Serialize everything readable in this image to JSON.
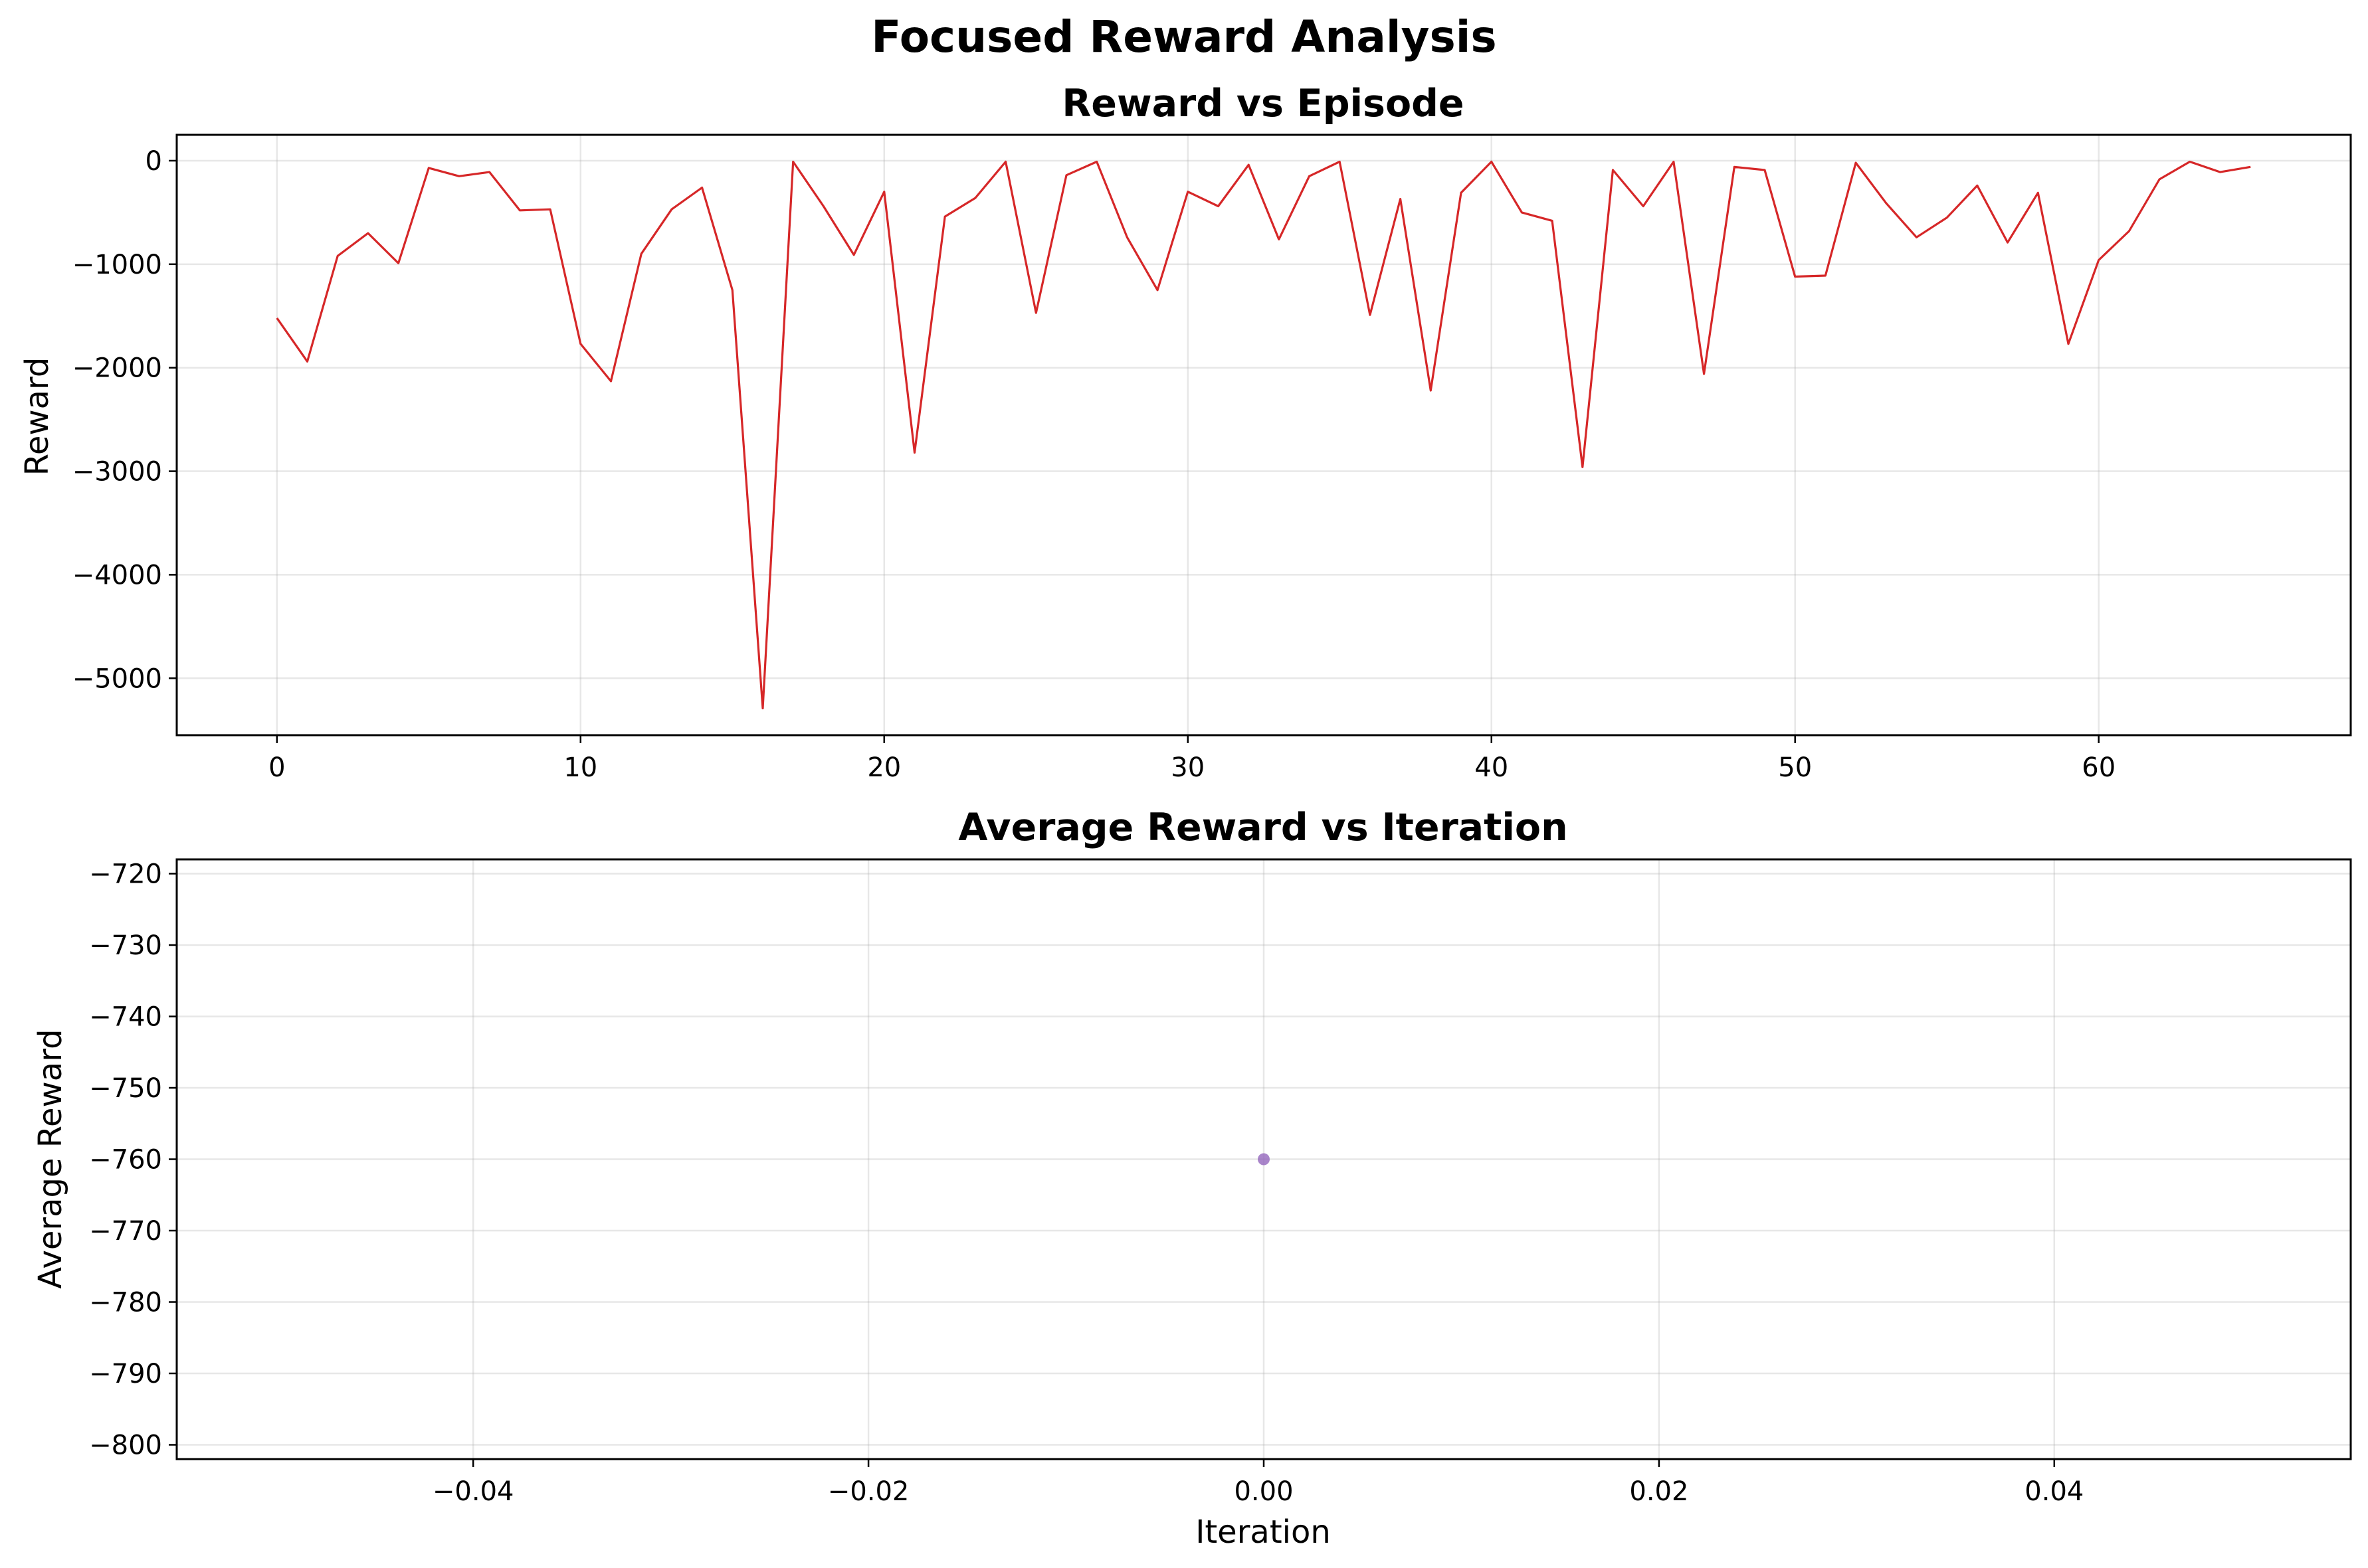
{
  "figure": {
    "title": "Focused Reward Analysis"
  },
  "chart_data": [
    {
      "type": "line",
      "title": "Reward vs Episode",
      "xlabel": "",
      "ylabel": "Reward",
      "xlim": [
        -3.3,
        68.3
      ],
      "ylim": [
        -5550,
        250
      ],
      "xticks": [
        0,
        10,
        20,
        30,
        40,
        50,
        60
      ],
      "yticks": [
        0,
        -1000,
        -2000,
        -3000,
        -4000,
        -5000
      ],
      "xtick_labels": [
        "0",
        "10",
        "20",
        "30",
        "40",
        "50",
        "60"
      ],
      "ytick_labels": [
        "0",
        "−1000",
        "−2000",
        "−3000",
        "−4000",
        "−5000"
      ],
      "grid": true,
      "color": "#d62728",
      "series": [
        {
          "x": [
            0,
            1,
            2,
            3,
            4,
            5,
            6,
            7,
            8,
            9,
            10,
            11,
            12,
            13,
            14,
            15,
            16,
            17,
            18,
            19,
            20,
            21,
            22,
            23,
            24,
            25,
            26,
            27,
            28,
            29,
            30,
            31,
            32,
            33,
            34,
            35,
            36,
            37,
            38,
            39,
            40,
            41,
            42,
            43,
            44,
            45,
            46,
            47,
            48,
            49,
            50,
            51,
            52,
            53,
            54,
            55,
            56,
            57,
            58,
            59,
            60,
            61,
            62,
            63,
            64,
            65
          ],
          "values": [
            -1520,
            -1940,
            -920,
            -700,
            -990,
            -70,
            -150,
            -110,
            -480,
            -470,
            -1770,
            -2130,
            -900,
            -470,
            -260,
            -1250,
            -5290,
            -10,
            -440,
            -910,
            -300,
            -2820,
            -540,
            -360,
            -10,
            -1470,
            -140,
            -10,
            -740,
            -1250,
            -300,
            -440,
            -40,
            -760,
            -150,
            -10,
            -1490,
            -370,
            -2220,
            -310,
            -10,
            -500,
            -580,
            -2960,
            -90,
            -440,
            -10,
            -2060,
            -60,
            -90,
            -1120,
            -1110,
            -20,
            -410,
            -740,
            -550,
            -240,
            -790,
            -310,
            -1770,
            -960,
            -680,
            -180,
            -10,
            -110,
            -60
          ]
        }
      ]
    },
    {
      "type": "scatter",
      "title": "Average Reward vs Iteration",
      "xlabel": "Iteration",
      "ylabel": "Average Reward",
      "xlim": [
        -0.055,
        0.055
      ],
      "ylim": [
        -802,
        -718
      ],
      "xticks": [
        -0.04,
        -0.02,
        0,
        0.02,
        0.04
      ],
      "yticks": [
        -720,
        -730,
        -740,
        -750,
        -760,
        -770,
        -780,
        -790,
        -800
      ],
      "xtick_labels": [
        "−0.04",
        "−0.02",
        "0.00",
        "0.02",
        "0.04"
      ],
      "ytick_labels": [
        "−720",
        "−730",
        "−740",
        "−750",
        "−760",
        "−770",
        "−780",
        "−790",
        "−800"
      ],
      "grid": true,
      "color": "#9467bd",
      "series": [
        {
          "x": [
            0
          ],
          "values": [
            -760
          ]
        }
      ]
    }
  ]
}
